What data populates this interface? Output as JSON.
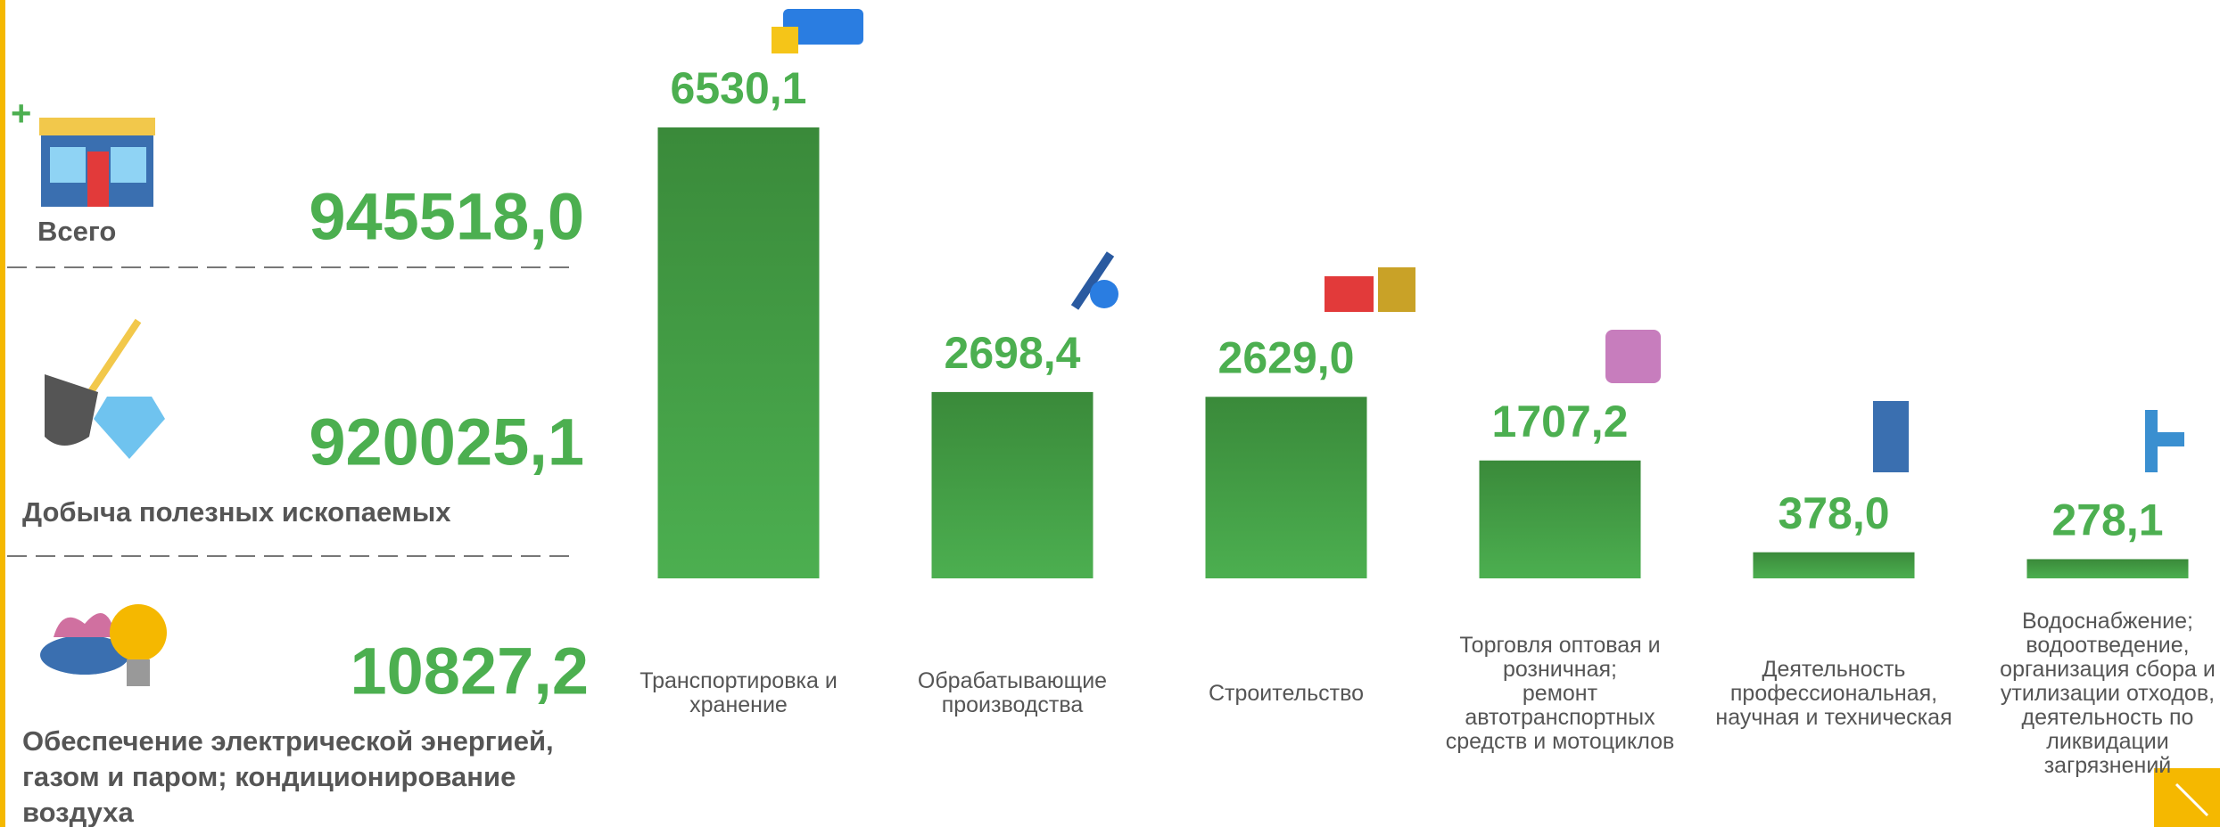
{
  "summary": [
    {
      "label": "Всего",
      "value": "945518,0"
    },
    {
      "label": "Добыча полезных ископаемых",
      "value": "920025,1"
    },
    {
      "label": "Обеспечение электрической энергией,\nгазом и паром; кондиционирование\nвоздуха",
      "value": "10827,2"
    }
  ],
  "chart_data": {
    "type": "bar",
    "categories": [
      "Транспортировка и\nхранение",
      "Обрабатывающие\nпроизводства",
      "Строительство",
      "Торговля оптовая и\nрозничная;\nремонт\nавтотранспортных\nсредств и мотоциклов",
      "Деятельность\nпрофессиональная,\nнаучная и техническая",
      "Водоснабжение;\nводоотведение,\nорганизация сбора и\nутилизации отходов,\nдеятельность по\nликвидации\nзагрязнений"
    ],
    "values": [
      6530.1,
      2698.4,
      2629.0,
      1707.2,
      378.0,
      278.1
    ],
    "value_labels": [
      "6530,1",
      "2698,4",
      "2629,0",
      "1707,2",
      "378,0",
      "278,1"
    ],
    "color": "#4caf50"
  }
}
